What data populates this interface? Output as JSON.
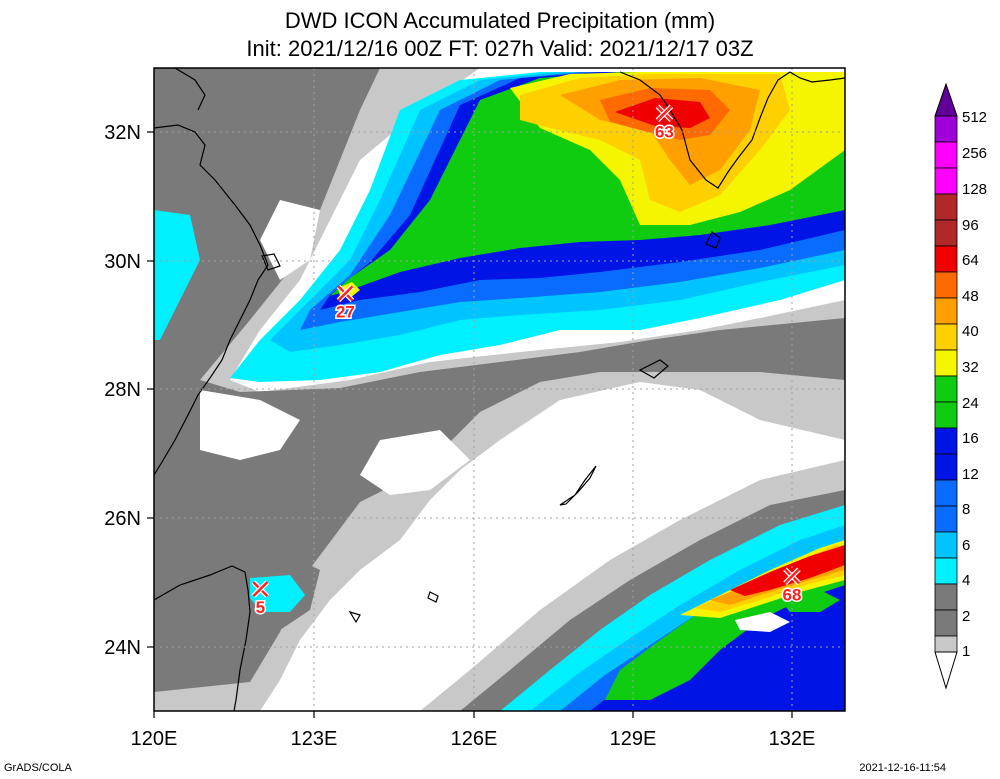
{
  "title_line1": "DWD ICON Accumulated Precipitation (mm)",
  "title_line2": "Init: 2021/12/16 00Z  FT: 027h  Valid: 2021/12/17 03Z",
  "footer_left": "GrADS/COLA",
  "footer_right": "2021-12-16-11:54",
  "axes": {
    "lon_labels": [
      "120E",
      "123E",
      "126E",
      "129E",
      "132E"
    ],
    "lat_labels": [
      "32N",
      "30N",
      "28N",
      "26N",
      "24N"
    ]
  },
  "colorbar": {
    "levels": [
      "512",
      "256",
      "128",
      "96",
      "64",
      "48",
      "40",
      "32",
      "24",
      "16",
      "12",
      "8",
      "6",
      "4",
      "2",
      "1"
    ],
    "colors": {
      "c1": "#c8c8c8",
      "c2": "#7a7a7a",
      "c4": "#00f0ff",
      "c6": "#00c4ff",
      "c8": "#0a6cff",
      "c12": "#0014e6",
      "c16": "#10cc10",
      "c24": "#f5f500",
      "c32": "#ffd000",
      "c40": "#ffa000",
      "c48": "#ff6a00",
      "c64": "#f00000",
      "c96": "#b02828",
      "c128": "#ff00ff",
      "c256": "#a000d8",
      "c512": "#600098"
    }
  },
  "markers": [
    {
      "label": "63",
      "lon": 129.6,
      "lat": 32.3
    },
    {
      "label": "27",
      "lon": 123.6,
      "lat": 29.5
    },
    {
      "label": "5",
      "lon": 122.0,
      "lat": 24.9
    },
    {
      "label": "68",
      "lon": 132.0,
      "lat": 25.1
    }
  ],
  "map_colors": {
    "coast": "#000000",
    "grid": "#a0a0a0",
    "marker": "#ff2020"
  }
}
